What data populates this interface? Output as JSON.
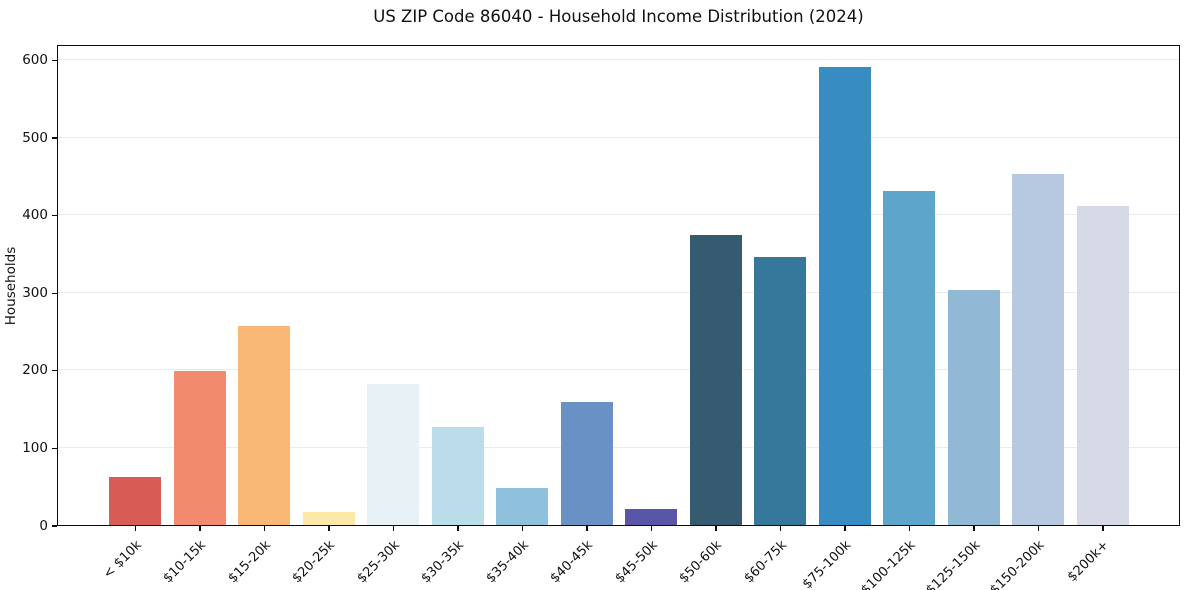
{
  "figure": {
    "background": "#ffffff"
  },
  "chart_data": {
    "type": "bar",
    "title": "US ZIP Code 86040 - Household Income Distribution (2024)",
    "xlabel": "",
    "ylabel": "Households",
    "categories": [
      "< $10k",
      "$10-15k",
      "$15-20k",
      "$20-25k",
      "$25-30k",
      "$30-35k",
      "$35-40k",
      "$40-45k",
      "$45-50k",
      "$50-60k",
      "$60-75k",
      "$75-100k",
      "$100-125k",
      "$125-150k",
      "$150-200k",
      "$200k+"
    ],
    "values": [
      62,
      199,
      256,
      17,
      182,
      126,
      48,
      159,
      21,
      374,
      345,
      590,
      431,
      303,
      453,
      411
    ],
    "bar_colors": [
      "#d95b55",
      "#f28a6d",
      "#fab876",
      "#fce9a8",
      "#e7f1f6",
      "#bbdde9",
      "#8fc0dc",
      "#6a91c5",
      "#5955a7",
      "#365a70",
      "#36789c",
      "#378cc1",
      "#5da5cb",
      "#91b9d5",
      "#b6c9e0",
      "#d6d9e6"
    ],
    "yticks": [
      0,
      100,
      200,
      300,
      400,
      500,
      600
    ],
    "ylim": [
      0,
      620
    ],
    "grid": "horizontal",
    "grid_color": "#ebebeb",
    "legend_position": "none",
    "x_tick_rotation_deg": 45,
    "bar_width_fraction": 0.8
  }
}
